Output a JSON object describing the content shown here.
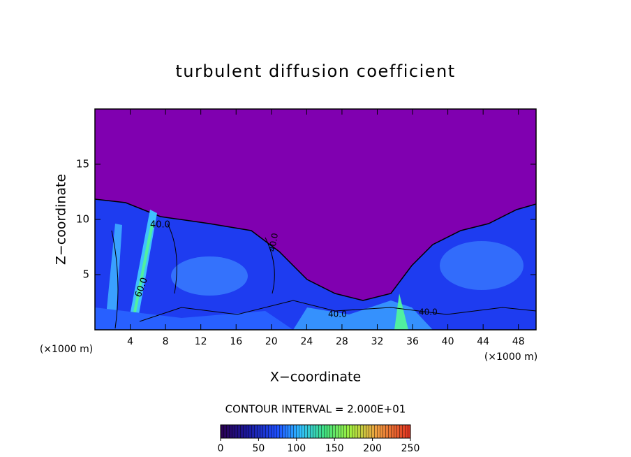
{
  "chart_data": {
    "type": "contour",
    "title": "turbulent diffusion coefficient",
    "xlabel": "X−coordinate",
    "ylabel": "Z−coordinate",
    "x_unit_left": "(×1000 m)",
    "x_unit_right": "(×1000 m)",
    "xlim": [
      0,
      50
    ],
    "xticks": [
      4,
      8,
      12,
      16,
      20,
      24,
      28,
      32,
      36,
      40,
      44,
      48
    ],
    "ylim": [
      0,
      20
    ],
    "yticks": [
      5,
      10,
      15
    ],
    "contour_labels": [
      "40.0",
      "60.0",
      "40.0",
      "40.0",
      "40.0"
    ],
    "contour_interval": "CONTOUR INTERVAL = 2.000E+01",
    "colorbar": {
      "lim": [
        0,
        250
      ],
      "ticks": [
        0,
        50,
        100,
        150,
        200,
        250
      ]
    }
  }
}
